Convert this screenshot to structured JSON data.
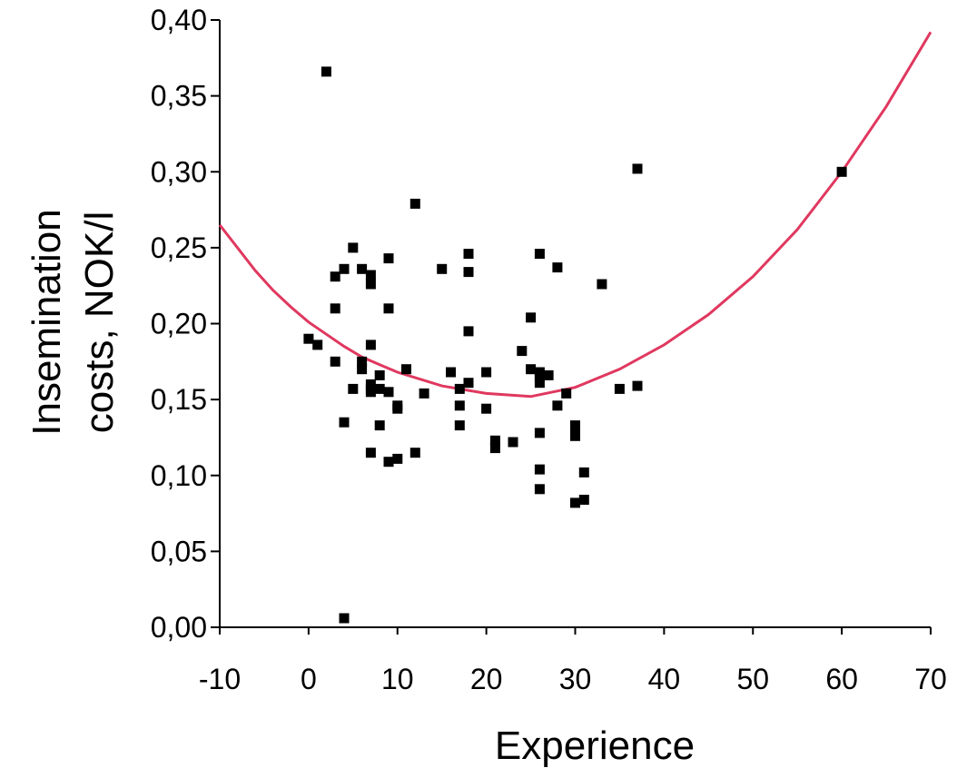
{
  "chart_data": {
    "type": "scatter",
    "title": "",
    "xlabel": "Experience",
    "ylabel_lines": [
      "Insemination",
      "costs, NOK/l"
    ],
    "xlim": [
      -10,
      70
    ],
    "ylim": [
      0,
      0.4
    ],
    "x_ticks": [
      {
        "value": -10,
        "label": "-10"
      },
      {
        "value": 0,
        "label": "0"
      },
      {
        "value": 10,
        "label": "10"
      },
      {
        "value": 20,
        "label": "20"
      },
      {
        "value": 30,
        "label": "30"
      },
      {
        "value": 40,
        "label": "40"
      },
      {
        "value": 50,
        "label": "50"
      },
      {
        "value": 60,
        "label": "60"
      },
      {
        "value": 70,
        "label": "70"
      }
    ],
    "y_ticks": [
      {
        "value": 0.0,
        "label": "0,00"
      },
      {
        "value": 0.05,
        "label": "0,05"
      },
      {
        "value": 0.1,
        "label": "0,10"
      },
      {
        "value": 0.15,
        "label": "0,15"
      },
      {
        "value": 0.2,
        "label": "0,20"
      },
      {
        "value": 0.25,
        "label": "0,25"
      },
      {
        "value": 0.3,
        "label": "0,30"
      },
      {
        "value": 0.35,
        "label": "0,35"
      },
      {
        "value": 0.4,
        "label": "0,40"
      }
    ],
    "grid": false,
    "legend": "none",
    "marker_color": "#000000",
    "curve_color": "#e0385f",
    "points": [
      [
        2,
        0.366
      ],
      [
        4,
        0.006
      ],
      [
        0,
        0.19
      ],
      [
        1,
        0.186
      ],
      [
        3,
        0.231
      ],
      [
        3,
        0.21
      ],
      [
        3,
        0.175
      ],
      [
        4,
        0.236
      ],
      [
        4,
        0.135
      ],
      [
        5,
        0.25
      ],
      [
        5,
        0.157
      ],
      [
        6,
        0.236
      ],
      [
        6,
        0.175
      ],
      [
        6,
        0.17
      ],
      [
        7,
        0.232
      ],
      [
        7,
        0.226
      ],
      [
        7,
        0.186
      ],
      [
        7,
        0.16
      ],
      [
        7,
        0.157
      ],
      [
        7,
        0.155
      ],
      [
        7,
        0.115
      ],
      [
        8,
        0.166
      ],
      [
        8,
        0.157
      ],
      [
        8,
        0.133
      ],
      [
        9,
        0.243
      ],
      [
        9,
        0.21
      ],
      [
        9,
        0.155
      ],
      [
        9,
        0.109
      ],
      [
        10,
        0.146
      ],
      [
        10,
        0.144
      ],
      [
        10,
        0.111
      ],
      [
        11,
        0.17
      ],
      [
        12,
        0.279
      ],
      [
        12,
        0.115
      ],
      [
        13,
        0.154
      ],
      [
        15,
        0.236
      ],
      [
        16,
        0.168
      ],
      [
        17,
        0.157
      ],
      [
        17,
        0.146
      ],
      [
        17,
        0.133
      ],
      [
        18,
        0.246
      ],
      [
        18,
        0.234
      ],
      [
        18,
        0.195
      ],
      [
        18,
        0.161
      ],
      [
        20,
        0.168
      ],
      [
        20,
        0.144
      ],
      [
        21,
        0.123
      ],
      [
        21,
        0.118
      ],
      [
        23,
        0.122
      ],
      [
        24,
        0.182
      ],
      [
        25,
        0.204
      ],
      [
        25,
        0.17
      ],
      [
        26,
        0.246
      ],
      [
        26,
        0.168
      ],
      [
        26,
        0.165
      ],
      [
        26,
        0.161
      ],
      [
        26,
        0.128
      ],
      [
        26,
        0.104
      ],
      [
        26,
        0.091
      ],
      [
        27,
        0.166
      ],
      [
        28,
        0.237
      ],
      [
        28,
        0.146
      ],
      [
        29,
        0.154
      ],
      [
        30,
        0.133
      ],
      [
        30,
        0.13
      ],
      [
        30,
        0.126
      ],
      [
        30,
        0.082
      ],
      [
        31,
        0.102
      ],
      [
        31,
        0.084
      ],
      [
        33,
        0.226
      ],
      [
        35,
        0.157
      ],
      [
        37,
        0.302
      ],
      [
        37,
        0.159
      ],
      [
        60,
        0.3
      ]
    ],
    "fit_curve": [
      [
        -10,
        0.265
      ],
      [
        -8,
        0.25
      ],
      [
        -6,
        0.235
      ],
      [
        -4,
        0.222
      ],
      [
        -2,
        0.211
      ],
      [
        0,
        0.201
      ],
      [
        2,
        0.193
      ],
      [
        4,
        0.185
      ],
      [
        6,
        0.178
      ],
      [
        8,
        0.173
      ],
      [
        10,
        0.168
      ],
      [
        15,
        0.159
      ],
      [
        20,
        0.154
      ],
      [
        25,
        0.152
      ],
      [
        30,
        0.158
      ],
      [
        35,
        0.17
      ],
      [
        40,
        0.186
      ],
      [
        45,
        0.206
      ],
      [
        50,
        0.231
      ],
      [
        55,
        0.262
      ],
      [
        60,
        0.3
      ],
      [
        65,
        0.343
      ],
      [
        70,
        0.392
      ]
    ]
  }
}
